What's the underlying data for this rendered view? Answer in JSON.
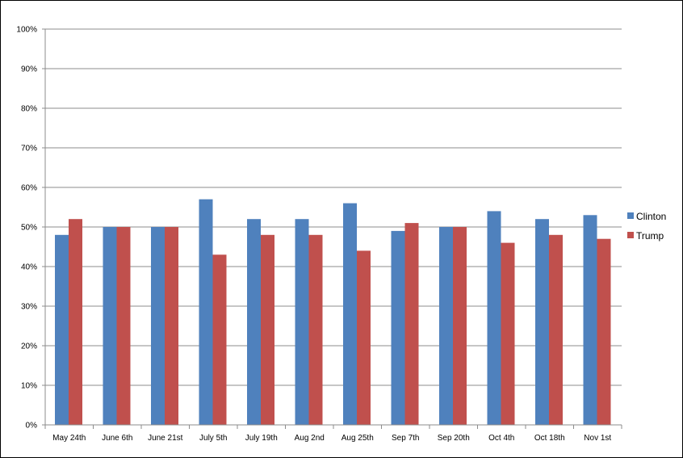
{
  "chart_data": {
    "type": "bar",
    "categories": [
      "May 24th",
      "June 6th",
      "June 21st",
      "July 5th",
      "July 19th",
      "Aug 2nd",
      "Aug 25th",
      "Sep 7th",
      "Sep 20th",
      "Oct 4th",
      "Oct 18th",
      "Nov 1st"
    ],
    "series": [
      {
        "name": "Clinton",
        "color": "#4f81bd",
        "values": [
          48,
          50,
          50,
          57,
          52,
          52,
          56,
          49,
          50,
          54,
          52,
          53
        ]
      },
      {
        "name": "Trump",
        "color": "#c0504d",
        "values": [
          52,
          50,
          50,
          43,
          48,
          48,
          44,
          51,
          50,
          46,
          48,
          47
        ]
      }
    ],
    "ylim": [
      0,
      100
    ],
    "yticks": [
      0,
      10,
      20,
      30,
      40,
      50,
      60,
      70,
      80,
      90,
      100
    ],
    "ytick_labels": [
      "0%",
      "10%",
      "20%",
      "30%",
      "40%",
      "50%",
      "60%",
      "70%",
      "80%",
      "90%",
      "100%"
    ],
    "title": "",
    "xlabel": "",
    "ylabel": "",
    "grid": true,
    "legend": "right"
  }
}
